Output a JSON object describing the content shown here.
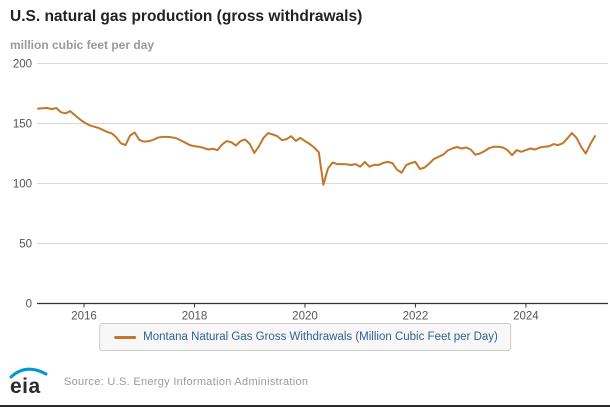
{
  "header": {
    "title": "U.S. natural gas production (gross withdrawals)",
    "units_label": "million cubic feet per day"
  },
  "legend": {
    "label": "Montana Natural Gas Gross Withdrawals (Million Cubic Feet per Day)"
  },
  "footer": {
    "logo_text": "eia",
    "source": "Source: U.S. Energy Information Administration"
  },
  "colors": {
    "series": "#c1772b",
    "grid": "#d9d9d9",
    "axis": "#333333",
    "tick_label": "#555555",
    "title": "#222222",
    "subtitle": "#9a9a9a",
    "legend_text": "#33618c",
    "legend_bg": "#f7f7f7",
    "legend_border": "#cccccc",
    "logo_blue": "#0096d7"
  },
  "chart_data": {
    "type": "line",
    "title": "U.S. natural gas production (gross withdrawals)",
    "ylabel": "million cubic feet per day",
    "ylim": [
      0,
      200
    ],
    "yticks": [
      0,
      50,
      100,
      150,
      200
    ],
    "xticks": [
      2016,
      2018,
      2020,
      2022,
      2024
    ],
    "grid": true,
    "legend_position": "bottom",
    "series": [
      {
        "name": "Montana Natural Gas Gross Withdrawals (Million Cubic Feet per Day)",
        "start": "2015-03",
        "freq": "monthly",
        "values": [
          162.4,
          162.7,
          162.9,
          162.0,
          162.9,
          159.3,
          158.5,
          160.3,
          157.0,
          153.8,
          151.0,
          148.8,
          147.6,
          146.5,
          144.8,
          143.0,
          141.8,
          138.5,
          133.5,
          132.0,
          140.0,
          142.5,
          136.3,
          134.9,
          135.2,
          136.3,
          138.2,
          138.8,
          138.8,
          138.5,
          137.8,
          135.9,
          134.0,
          132.0,
          131.1,
          130.6,
          129.7,
          128.3,
          128.9,
          127.8,
          132.5,
          135.3,
          134.4,
          131.7,
          135.3,
          136.7,
          133.0,
          125.5,
          131.0,
          138.0,
          142.0,
          140.8,
          139.4,
          136.1,
          137.0,
          139.4,
          135.5,
          138.0,
          135.3,
          133.0,
          130.0,
          126.0,
          99.0,
          112.5,
          117.5,
          116.2,
          116.2,
          116.0,
          115.4,
          116.2,
          114.0,
          118.0,
          114.0,
          115.5,
          115.5,
          117.2,
          118.0,
          117.0,
          111.5,
          109.0,
          115.3,
          117.0,
          118.0,
          112.0,
          113.3,
          116.7,
          120.5,
          122.2,
          124.0,
          127.5,
          129.2,
          130.4,
          129.2,
          130.0,
          128.3,
          124.0,
          125.0,
          127.0,
          129.5,
          130.6,
          130.6,
          130.0,
          127.8,
          123.6,
          127.8,
          126.4,
          127.8,
          129.2,
          128.3,
          130.0,
          130.6,
          131.0,
          132.8,
          132.0,
          133.5,
          137.5,
          142.0,
          138.0,
          130.5,
          125.0,
          133.0,
          139.5
        ]
      }
    ]
  }
}
